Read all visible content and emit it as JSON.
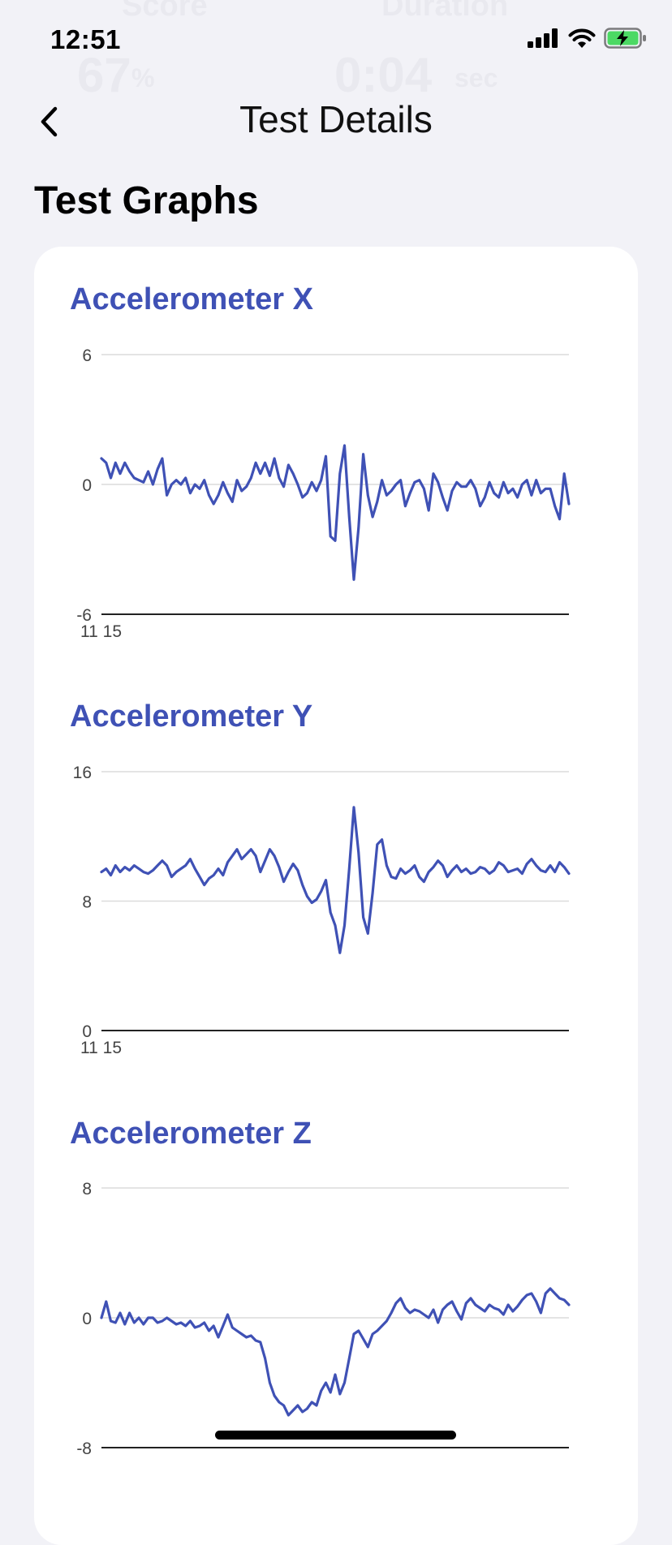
{
  "status": {
    "time": "12:51",
    "ghost": [
      "Score",
      "Duration",
      "67",
      "%",
      "0:04",
      "sec"
    ]
  },
  "nav": {
    "title": "Test Details"
  },
  "section_title": "Test Graphs",
  "colors": {
    "accent": "#3f51b5",
    "background": "#f2f2f7",
    "card": "#ffffff",
    "battery": "#4cd964"
  },
  "icons": [
    "back-chevron-icon",
    "signal-icon",
    "wifi-icon",
    "battery-charging-icon"
  ],
  "chart_data": [
    {
      "type": "line",
      "title": "Accelerometer X",
      "ylim": [
        -6,
        6
      ],
      "yticks": [
        6,
        0,
        -6
      ],
      "xticks": [
        "11 15"
      ],
      "x": [
        0,
        1,
        2,
        3,
        4,
        5,
        6,
        7,
        8,
        9,
        10,
        11,
        12,
        13,
        14,
        15,
        16,
        17,
        18,
        19,
        20,
        21,
        22,
        23,
        24,
        25,
        26,
        27,
        28,
        29,
        30,
        31,
        32,
        33,
        34,
        35,
        36,
        37,
        38,
        39,
        40,
        41,
        42,
        43,
        44,
        45,
        46,
        47,
        48,
        49,
        50,
        51,
        52,
        53,
        54,
        55,
        56,
        57,
        58,
        59,
        60,
        61,
        62,
        63,
        64,
        65,
        66,
        67,
        68,
        69,
        70,
        71,
        72,
        73,
        74,
        75,
        76,
        77,
        78,
        79,
        80,
        81,
        82,
        83,
        84,
        85,
        86,
        87,
        88,
        89,
        90,
        91,
        92,
        93,
        94,
        95,
        96,
        97,
        98,
        99,
        100
      ],
      "series": [
        {
          "name": "Accelerometer X",
          "color": "#3f51b5",
          "values": [
            1.2,
            1.0,
            0.3,
            1.0,
            0.5,
            1.0,
            0.6,
            0.3,
            0.2,
            0.1,
            0.6,
            0.0,
            0.7,
            1.2,
            -0.5,
            0.0,
            0.2,
            0.0,
            0.3,
            -0.4,
            0.0,
            -0.2,
            0.2,
            -0.5,
            -0.9,
            -0.5,
            0.1,
            -0.4,
            -0.8,
            0.2,
            -0.3,
            -0.1,
            0.3,
            1.0,
            0.5,
            1.0,
            0.4,
            1.2,
            0.3,
            -0.1,
            0.9,
            0.5,
            0.0,
            -0.6,
            -0.4,
            0.1,
            -0.3,
            0.2,
            1.3,
            -2.4,
            -2.6,
            0.5,
            1.8,
            -1.5,
            -4.4,
            -2.0,
            1.4,
            -0.5,
            -1.5,
            -0.8,
            0.2,
            -0.5,
            -0.3,
            0.0,
            0.2,
            -1.0,
            -0.4,
            0.1,
            0.2,
            -0.2,
            -1.2,
            0.5,
            0.1,
            -0.6,
            -1.2,
            -0.3,
            0.1,
            -0.1,
            -0.1,
            0.2,
            -0.2,
            -1.0,
            -0.6,
            0.1,
            -0.4,
            -0.6,
            0.1,
            -0.4,
            -0.2,
            -0.6,
            0.0,
            0.2,
            -0.5,
            0.2,
            -0.4,
            -0.2,
            -0.2,
            -1.0,
            -1.6,
            0.5,
            -0.9
          ]
        }
      ]
    },
    {
      "type": "line",
      "title": "Accelerometer Y",
      "ylim": [
        0,
        16
      ],
      "yticks": [
        16,
        8,
        0
      ],
      "xticks": [
        "11 15"
      ],
      "x": [
        0,
        1,
        2,
        3,
        4,
        5,
        6,
        7,
        8,
        9,
        10,
        11,
        12,
        13,
        14,
        15,
        16,
        17,
        18,
        19,
        20,
        21,
        22,
        23,
        24,
        25,
        26,
        27,
        28,
        29,
        30,
        31,
        32,
        33,
        34,
        35,
        36,
        37,
        38,
        39,
        40,
        41,
        42,
        43,
        44,
        45,
        46,
        47,
        48,
        49,
        50,
        51,
        52,
        53,
        54,
        55,
        56,
        57,
        58,
        59,
        60,
        61,
        62,
        63,
        64,
        65,
        66,
        67,
        68,
        69,
        70,
        71,
        72,
        73,
        74,
        75,
        76,
        77,
        78,
        79,
        80,
        81,
        82,
        83,
        84,
        85,
        86,
        87,
        88,
        89,
        90,
        91,
        92,
        93,
        94,
        95,
        96,
        97,
        98,
        99,
        100
      ],
      "series": [
        {
          "name": "Accelerometer Y",
          "color": "#3f51b5",
          "values": [
            9.8,
            10.0,
            9.6,
            10.2,
            9.8,
            10.1,
            9.9,
            10.2,
            10.0,
            9.8,
            9.7,
            9.9,
            10.2,
            10.5,
            10.2,
            9.5,
            9.8,
            10.0,
            10.2,
            10.6,
            10.0,
            9.5,
            9.0,
            9.4,
            9.6,
            10.0,
            9.6,
            10.4,
            10.8,
            11.2,
            10.6,
            10.9,
            11.2,
            10.8,
            9.8,
            10.5,
            11.2,
            10.8,
            10.1,
            9.2,
            9.8,
            10.3,
            9.9,
            9.0,
            8.3,
            7.9,
            8.1,
            8.6,
            9.3,
            7.3,
            6.5,
            4.8,
            6.5,
            10.0,
            13.8,
            11.0,
            7.0,
            6.0,
            8.5,
            11.5,
            11.8,
            10.2,
            9.5,
            9.4,
            10.0,
            9.7,
            9.9,
            10.2,
            9.5,
            9.2,
            9.8,
            10.1,
            10.5,
            10.2,
            9.5,
            9.9,
            10.2,
            9.8,
            10.0,
            9.7,
            9.8,
            10.1,
            10.0,
            9.7,
            9.9,
            10.4,
            10.2,
            9.8,
            9.9,
            10.0,
            9.7,
            10.3,
            10.6,
            10.2,
            9.9,
            9.8,
            10.2,
            9.8,
            10.4,
            10.1,
            9.7
          ]
        }
      ]
    },
    {
      "type": "line",
      "title": "Accelerometer Z",
      "ylim": [
        -8,
        8
      ],
      "yticks": [
        8,
        0,
        -8
      ],
      "xticks": [],
      "x": [
        0,
        1,
        2,
        3,
        4,
        5,
        6,
        7,
        8,
        9,
        10,
        11,
        12,
        13,
        14,
        15,
        16,
        17,
        18,
        19,
        20,
        21,
        22,
        23,
        24,
        25,
        26,
        27,
        28,
        29,
        30,
        31,
        32,
        33,
        34,
        35,
        36,
        37,
        38,
        39,
        40,
        41,
        42,
        43,
        44,
        45,
        46,
        47,
        48,
        49,
        50,
        51,
        52,
        53,
        54,
        55,
        56,
        57,
        58,
        59,
        60,
        61,
        62,
        63,
        64,
        65,
        66,
        67,
        68,
        69,
        70,
        71,
        72,
        73,
        74,
        75,
        76,
        77,
        78,
        79,
        80,
        81,
        82,
        83,
        84,
        85,
        86,
        87,
        88,
        89,
        90,
        91,
        92,
        93,
        94,
        95,
        96,
        97,
        98,
        99,
        100
      ],
      "series": [
        {
          "name": "Accelerometer Z",
          "color": "#3f51b5",
          "values": [
            0.0,
            1.0,
            -0.2,
            -0.3,
            0.3,
            -0.4,
            0.3,
            -0.3,
            0.0,
            -0.4,
            0.0,
            0.0,
            -0.3,
            -0.2,
            0.0,
            -0.2,
            -0.4,
            -0.3,
            -0.5,
            -0.2,
            -0.6,
            -0.5,
            -0.3,
            -0.8,
            -0.5,
            -1.2,
            -0.5,
            0.2,
            -0.6,
            -0.8,
            -1.0,
            -1.2,
            -1.1,
            -1.4,
            -1.5,
            -2.5,
            -4.0,
            -4.8,
            -5.2,
            -5.4,
            -6.0,
            -5.7,
            -5.4,
            -5.8,
            -5.6,
            -5.2,
            -5.4,
            -4.5,
            -4.0,
            -4.6,
            -3.5,
            -4.7,
            -4.0,
            -2.5,
            -1.0,
            -0.8,
            -1.3,
            -1.8,
            -1.0,
            -0.8,
            -0.5,
            -0.2,
            0.3,
            0.9,
            1.2,
            0.6,
            0.3,
            0.5,
            0.4,
            0.2,
            0.0,
            0.5,
            -0.3,
            0.5,
            0.8,
            1.0,
            0.4,
            -0.1,
            0.9,
            1.2,
            0.8,
            0.6,
            0.4,
            0.8,
            0.6,
            0.5,
            0.2,
            0.8,
            0.4,
            0.7,
            1.1,
            1.4,
            1.5,
            1.0,
            0.3,
            1.5,
            1.8,
            1.5,
            1.2,
            1.1,
            0.8
          ]
        }
      ]
    }
  ]
}
